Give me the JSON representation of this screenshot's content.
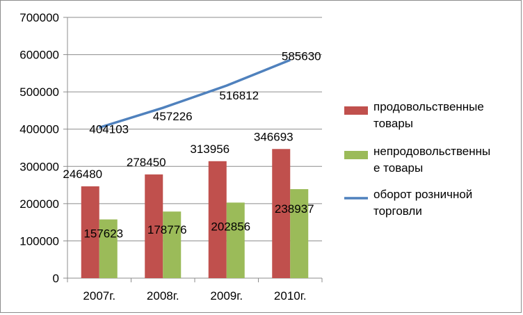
{
  "chart_data": {
    "type": "bar",
    "categories": [
      "2007г.",
      "2008г.",
      "2009г.",
      "2010г."
    ],
    "series": [
      {
        "name": "продовольственные товары",
        "kind": "bar",
        "color": "#c0504d",
        "values": [
          246480,
          278450,
          313956,
          346693
        ]
      },
      {
        "name": "непродовольственные товары",
        "kind": "bar",
        "color": "#9bbb59",
        "values": [
          157623,
          178776,
          202856,
          238937
        ]
      },
      {
        "name": "оборот розничной торговли",
        "kind": "line",
        "color": "#4f81bd",
        "values": [
          404103,
          457226,
          516812,
          585630
        ]
      }
    ],
    "ylim": [
      0,
      700000
    ],
    "yticks": [
      "0",
      "100000",
      "200000",
      "300000",
      "400000",
      "500000",
      "600000",
      "700000"
    ],
    "grid": true,
    "legend": {
      "position": "right",
      "entries": [
        {
          "lines": [
            "продовольственные",
            "товары"
          ]
        },
        {
          "lines": [
            "непродовольственны",
            "е товары"
          ]
        },
        {
          "lines": [
            "оборот розничной",
            "торговли"
          ]
        }
      ]
    },
    "data_labels": [
      [
        "246480",
        "278450",
        "313956",
        "346693"
      ],
      [
        "157623",
        "178776",
        "202856",
        "238937"
      ],
      [
        "404103",
        "457226",
        "516812",
        "585630"
      ]
    ]
  }
}
